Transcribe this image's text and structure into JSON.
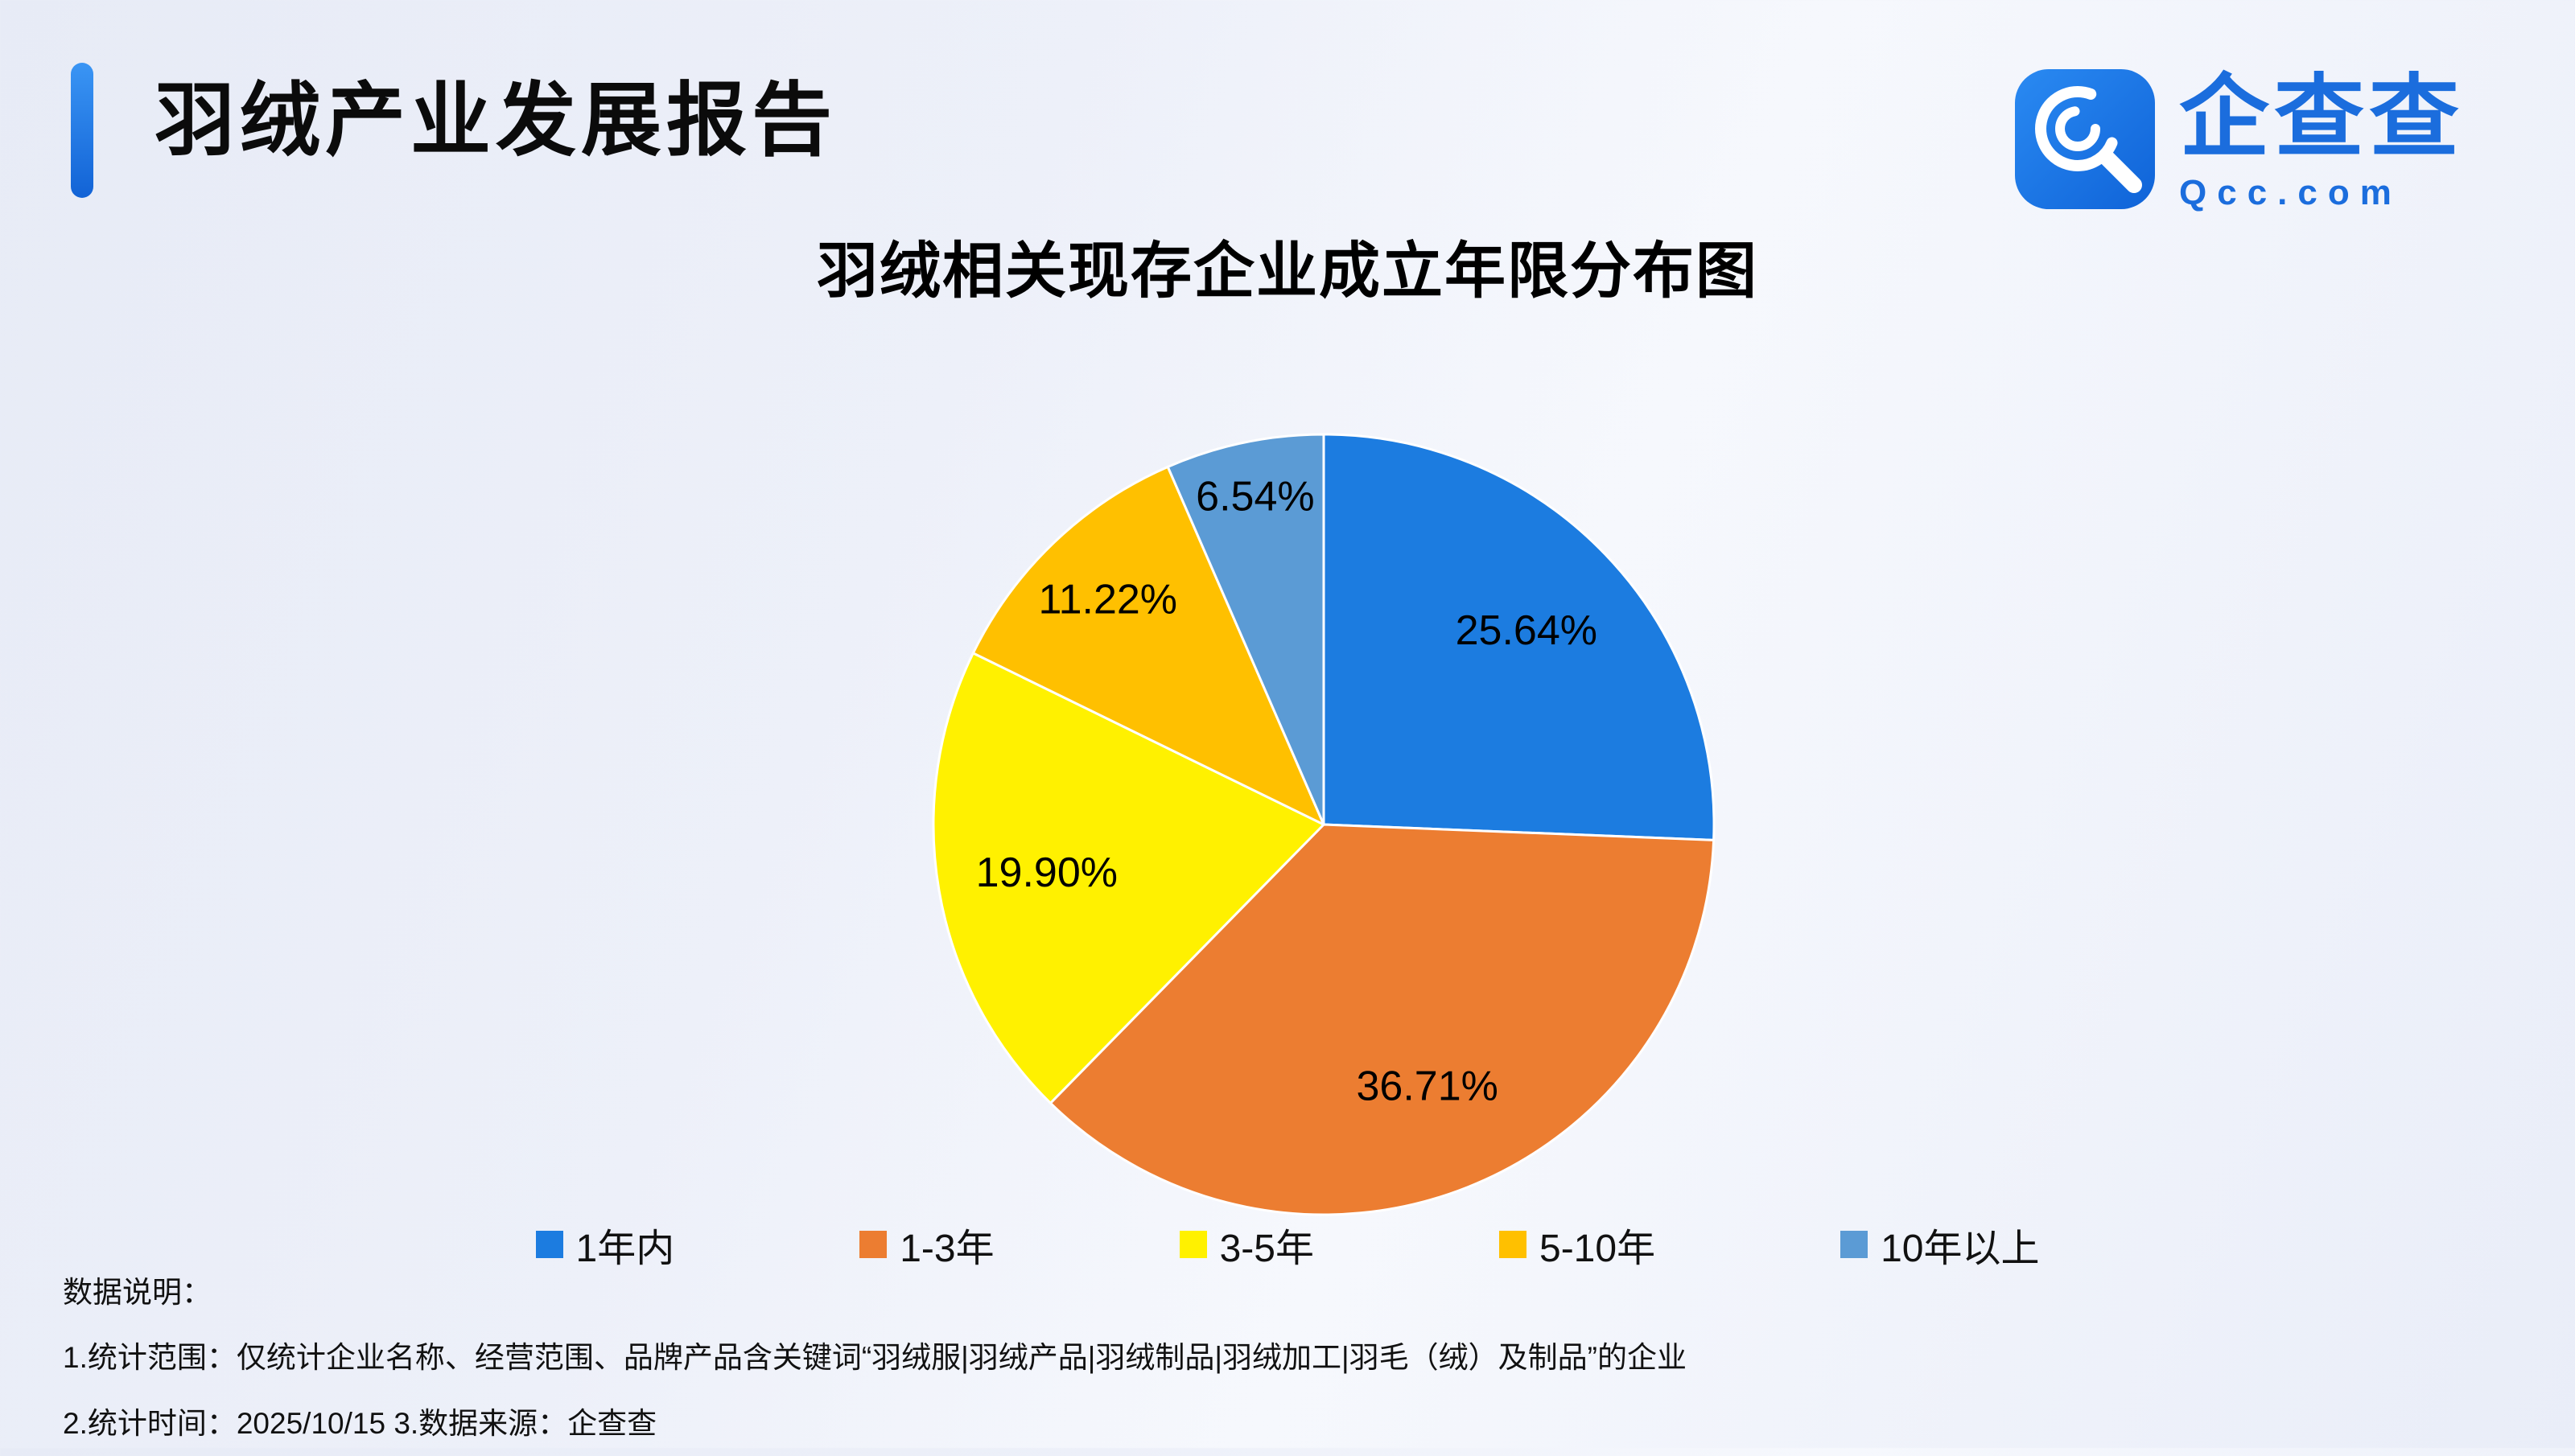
{
  "theme": {
    "accent_blue": "#1c7ce8",
    "logo_blue": "#1b6ddd",
    "text_dark": "#111111",
    "background": "#edf0f9"
  },
  "header": {
    "report_title": "羽绒产业发展报告",
    "logo": {
      "name": "企查查",
      "domain": "Qcc.com"
    }
  },
  "chart_data": {
    "type": "pie",
    "title": "羽绒相关现存企业成立年限分布图",
    "labels": [
      "1年内",
      "1-3年",
      "3-5年",
      "5-10年",
      "10年以上"
    ],
    "values": [
      25.64,
      36.71,
      19.9,
      11.22,
      6.54
    ],
    "value_labels": [
      "25.64%",
      "36.71%",
      "19.90%",
      "11.22%",
      "6.54%"
    ],
    "colors": [
      "#1c7ce0",
      "#ec7d31",
      "#fff100",
      "#ffc000",
      "#5b9bd5"
    ],
    "unit": "%",
    "start_angle_deg": 0,
    "direction": "clockwise",
    "legend_position": "bottom"
  },
  "notes": {
    "heading": "数据说明：",
    "line1": "1.统计范围：仅统计企业名称、经营范围、品牌产品含关键词“羽绒服|羽绒产品|羽绒制品|羽绒加工|羽毛（绒）及制品”的企业",
    "line2": "2.统计时间：2025/10/15 3.数据来源：企查查"
  }
}
